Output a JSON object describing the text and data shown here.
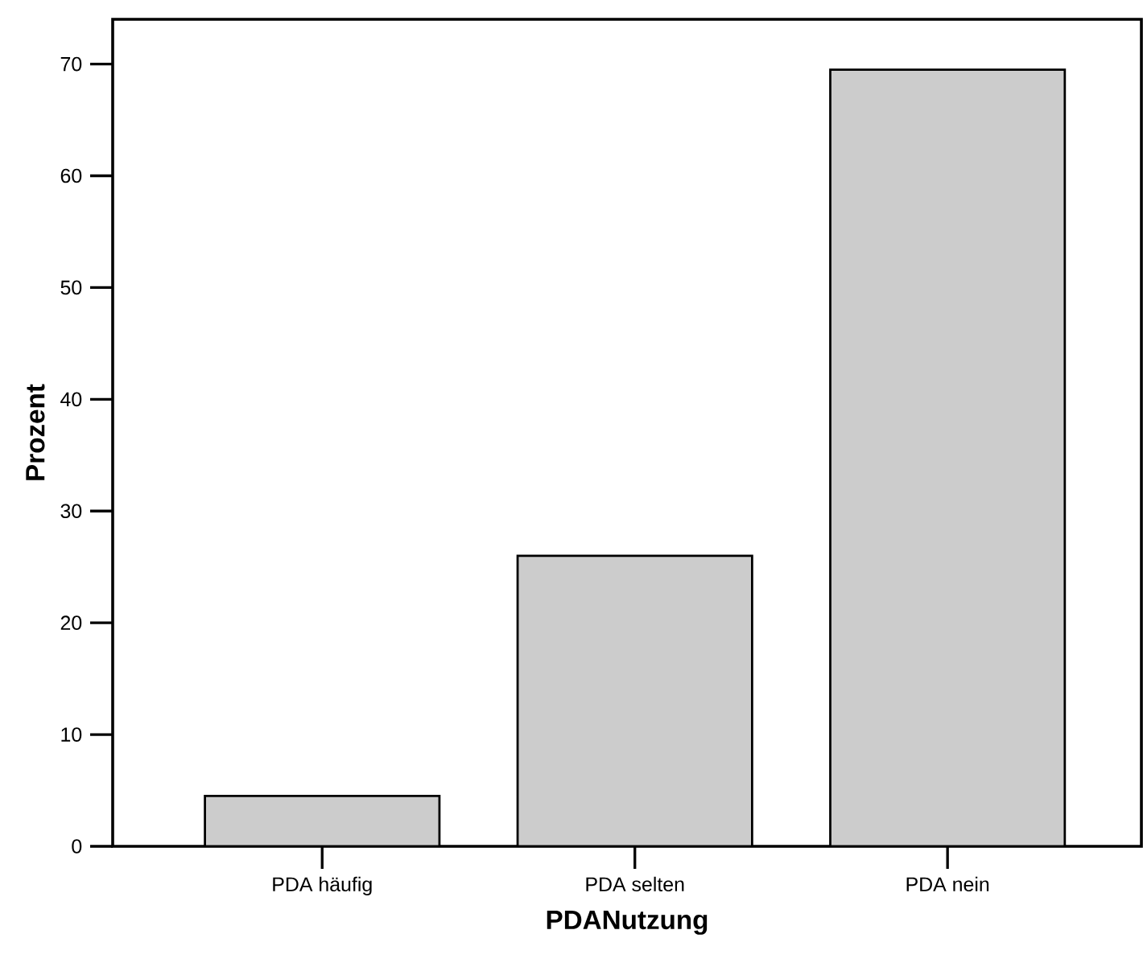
{
  "chart_data": {
    "type": "bar",
    "xlabel": "PDANutzung",
    "ylabel": "Prozent",
    "categories": [
      "PDA häufig",
      "PDA selten",
      "PDA nein"
    ],
    "values": [
      4.5,
      26.0,
      69.5
    ],
    "color": "#cccccc",
    "ylim": [
      0,
      74
    ],
    "yticks": [
      0,
      10,
      20,
      30,
      40,
      50,
      60,
      70
    ],
    "grid": false
  }
}
